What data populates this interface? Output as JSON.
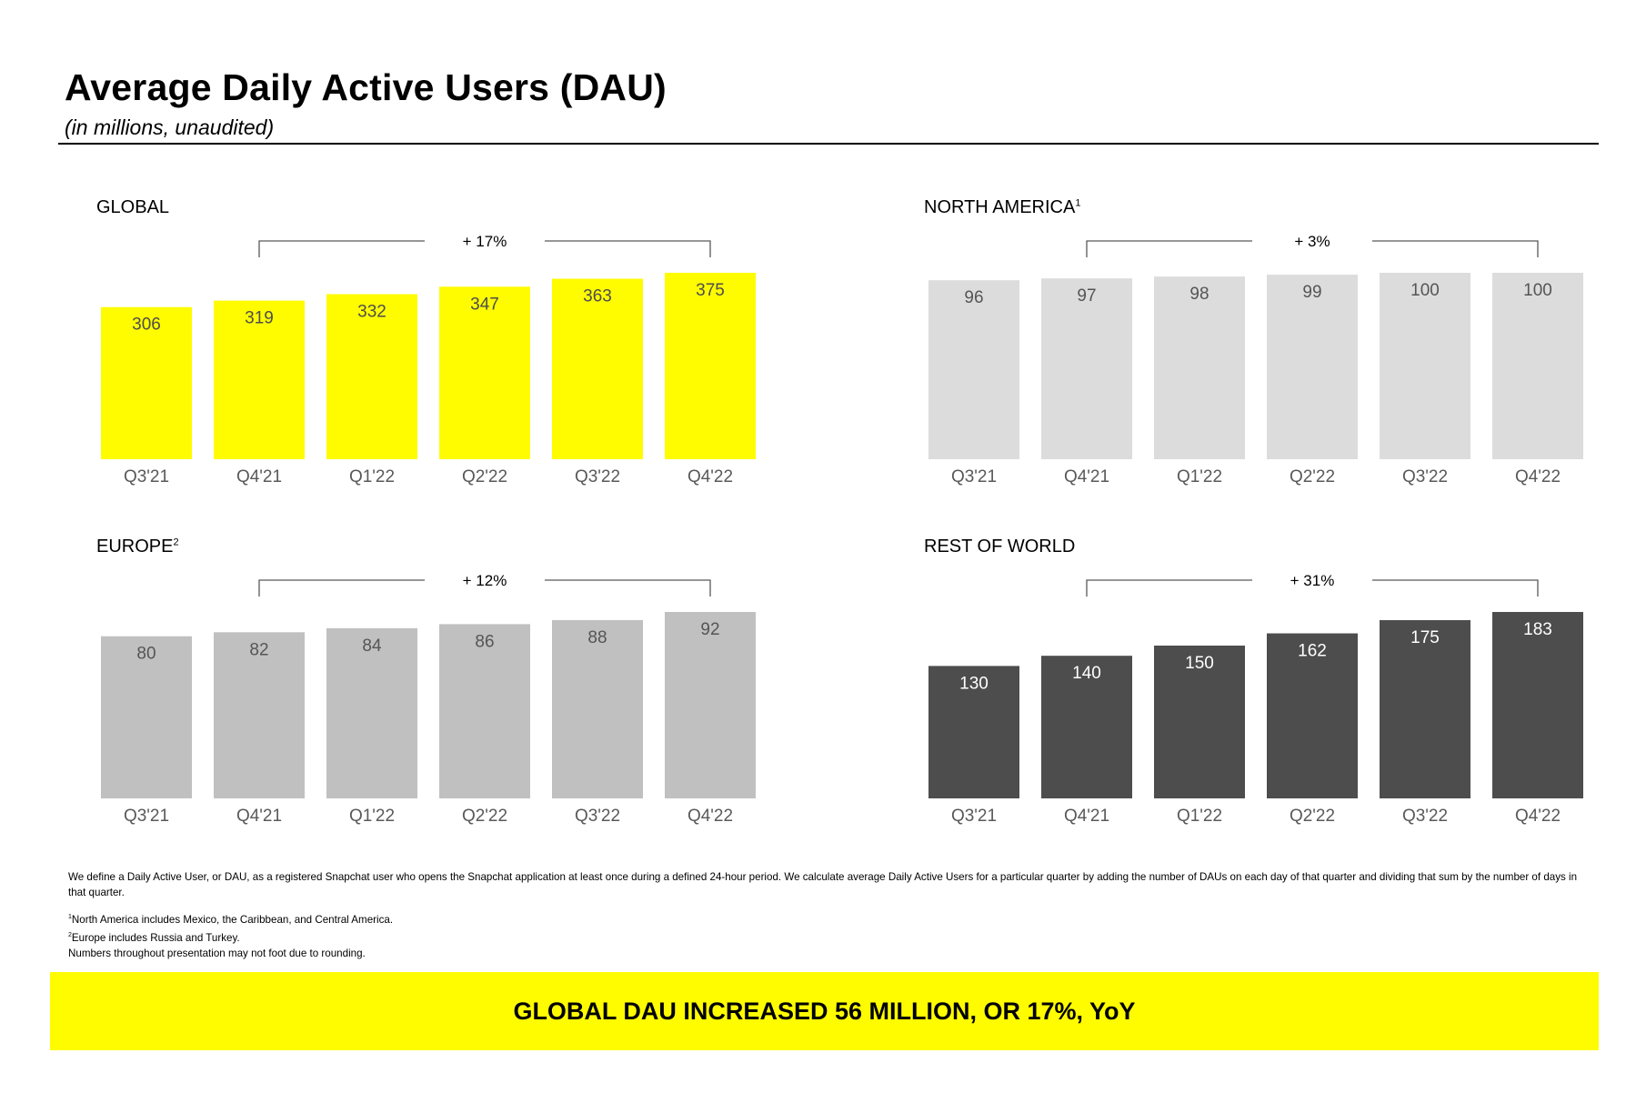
{
  "page": {
    "title": "Average Daily Active Users (DAU)",
    "subtitle": "(in millions, unaudited)"
  },
  "footnotes": {
    "definition": "We define a Daily Active User, or DAU, as a registered Snapchat user who opens the Snapchat application at least once during a defined 24-hour period. We calculate average Daily Active Users for a particular quarter by adding the number of DAUs on each day of that quarter and dividing that sum by the number of days in that quarter.",
    "note1_mark": "1",
    "note1": "North America includes Mexico, the Caribbean, and Central America.",
    "note2_mark": "2",
    "note2": "Europe includes Russia and Turkey.",
    "note3": "Numbers throughout presentation may not foot due to rounding."
  },
  "banner": {
    "text": "GLOBAL DAU INCREASED 56 MILLION, OR 17%, YoY"
  },
  "chart_data": [
    {
      "type": "bar",
      "title": "GLOBAL",
      "superscript": "",
      "categories": [
        "Q3'21",
        "Q4'21",
        "Q1'22",
        "Q2'22",
        "Q3'22",
        "Q4'22"
      ],
      "values": [
        306,
        319,
        332,
        347,
        363,
        375
      ],
      "growth_label": "+ 17%",
      "bar_color": "#fffc00",
      "label_color": "#4d4d4d",
      "ylim": [
        0,
        375
      ],
      "xlabel": "",
      "ylabel": ""
    },
    {
      "type": "bar",
      "title": "NORTH AMERICA",
      "superscript": "1",
      "categories": [
        "Q3'21",
        "Q4'21",
        "Q1'22",
        "Q2'22",
        "Q3'22",
        "Q4'22"
      ],
      "values": [
        96,
        97,
        98,
        99,
        100,
        100
      ],
      "growth_label": "+ 3%",
      "bar_color": "#dcdcdc",
      "label_color": "#555555",
      "ylim": [
        0,
        100
      ],
      "xlabel": "",
      "ylabel": ""
    },
    {
      "type": "bar",
      "title": "EUROPE",
      "superscript": "2",
      "categories": [
        "Q3'21",
        "Q4'21",
        "Q1'22",
        "Q2'22",
        "Q3'22",
        "Q4'22"
      ],
      "values": [
        80,
        82,
        84,
        86,
        88,
        92
      ],
      "growth_label": "+ 12%",
      "bar_color": "#c0c0c0",
      "label_color": "#555555",
      "ylim": [
        0,
        92
      ],
      "xlabel": "",
      "ylabel": ""
    },
    {
      "type": "bar",
      "title": "REST OF WORLD",
      "superscript": "",
      "categories": [
        "Q3'21",
        "Q4'21",
        "Q1'22",
        "Q2'22",
        "Q3'22",
        "Q4'22"
      ],
      "values": [
        130,
        140,
        150,
        162,
        175,
        183
      ],
      "growth_label": "+ 31%",
      "bar_color": "#4d4d4d",
      "label_color": "#ffffff",
      "ylim": [
        0,
        183
      ],
      "xlabel": "",
      "ylabel": ""
    }
  ]
}
